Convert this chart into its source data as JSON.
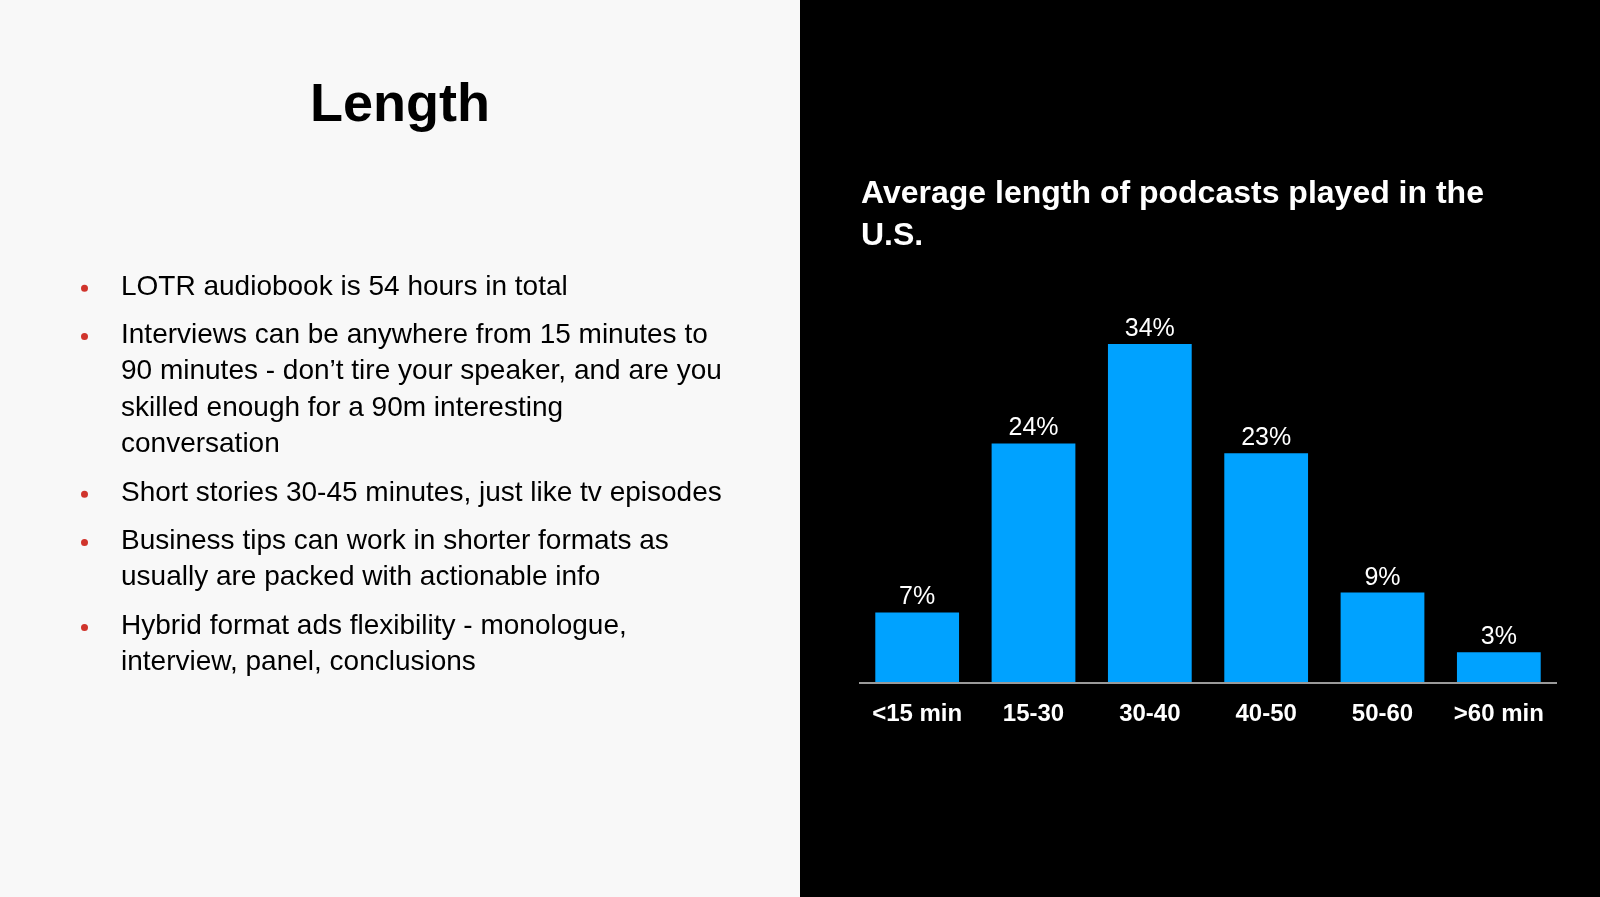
{
  "chart_data": [
    {
      "type": "other",
      "title": "Length",
      "annotations": [
        "LOTR audiobook is 54 hours in total",
        "Interviews can be anywhere from 15 minutes to 90 minutes - don’t tire your speaker, and are you skilled enough for a 90m interesting conversation",
        "Short stories 30-45 minutes, just like tv episodes",
        "Business tips can work in shorter formats as usually are packed with actionable info",
        "Hybrid format ads flexibility - monologue, interview, panel, conclusions"
      ]
    },
    {
      "type": "bar",
      "title": "Average length of podcasts played in the U.S.",
      "categories": [
        "<15 min",
        "15-30",
        "30-40",
        "40-50",
        "50-60",
        ">60 min"
      ],
      "values": [
        7,
        24,
        34,
        23,
        9,
        3
      ],
      "value_labels": [
        "7%",
        "24%",
        "34%",
        "23%",
        "9%",
        "3%"
      ],
      "color": "#00a2ff"
    }
  ]
}
